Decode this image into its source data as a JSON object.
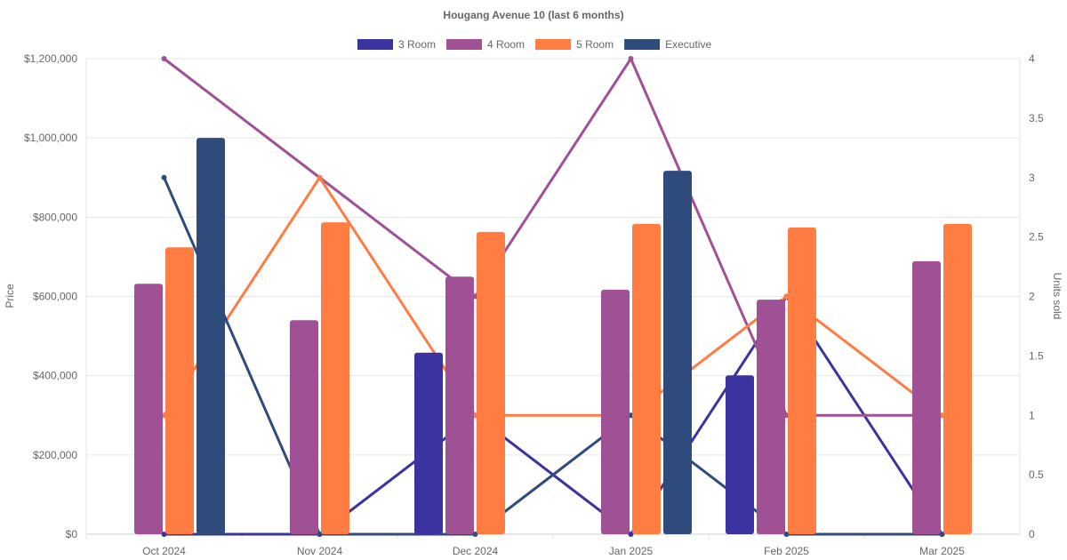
{
  "chart_data": {
    "type": "bar",
    "title": "Hougang Avenue 10 (last 6 months)",
    "categories": [
      "Oct 2024",
      "Nov 2024",
      "Dec 2024",
      "Jan 2025",
      "Feb 2025",
      "Mar 2025"
    ],
    "ylabel": "Price",
    "y2label": "Units sold",
    "ylim": [
      0,
      1200000
    ],
    "y2lim": [
      0,
      4
    ],
    "yticks": [
      "$0",
      "$200,000",
      "$400,000",
      "$600,000",
      "$800,000",
      "$1,000,000",
      "$1,200,000"
    ],
    "y2ticks": [
      "0",
      "0.5",
      "1",
      "1.5",
      "2",
      "2.5",
      "3",
      "3.5",
      "4"
    ],
    "legend_position": "top",
    "grid": true,
    "series": [
      {
        "name": "3 Room",
        "color": "#3b34a0",
        "price": [
          null,
          null,
          458000,
          null,
          401000,
          null
        ],
        "units": [
          0,
          0,
          1,
          0,
          2,
          0
        ]
      },
      {
        "name": "4 Room",
        "color": "#a05195",
        "price": [
          632000,
          540000,
          650000,
          617000,
          592000,
          689000
        ],
        "units": [
          4,
          3,
          2,
          4,
          1,
          1
        ]
      },
      {
        "name": "5 Room",
        "color": "#ff7c43",
        "price": [
          724000,
          787000,
          763000,
          783000,
          774000,
          783000
        ],
        "units": [
          1,
          3,
          1,
          1,
          2,
          1
        ]
      },
      {
        "name": "Executive",
        "color": "#2f4b7c",
        "price": [
          1000000,
          null,
          null,
          917000,
          null,
          null
        ],
        "units": [
          3,
          0,
          0,
          1,
          0,
          0
        ]
      }
    ]
  }
}
